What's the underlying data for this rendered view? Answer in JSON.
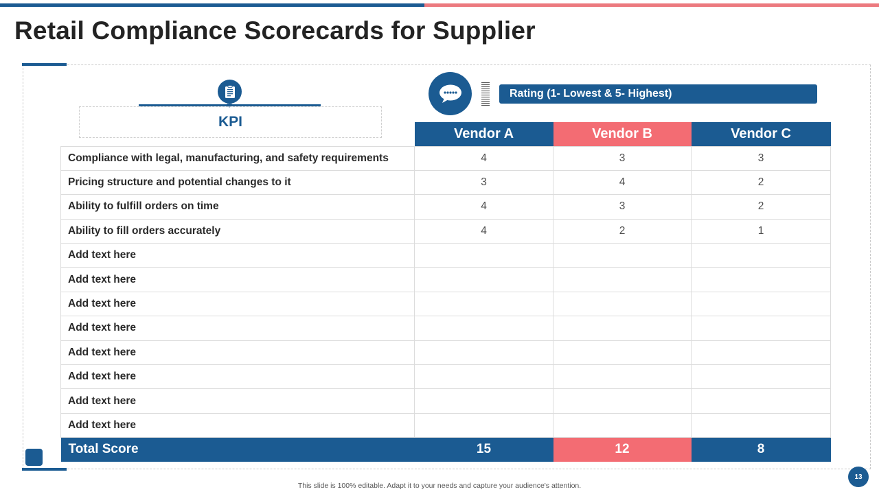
{
  "slide": {
    "title": "Retail Compliance Scorecards for Supplier",
    "page_number": "13",
    "footer_note": "This slide is 100% editable. Adapt it to your needs and capture your audience's attention."
  },
  "colors": {
    "primary": "#1b5b92",
    "accent": "#f36c73"
  },
  "icons": {
    "kpi": "clipboard-icon",
    "rating": "chat-bubble-icon"
  },
  "kpi_header": {
    "label": "KPI"
  },
  "rating_scale": {
    "label": "Rating (1- Lowest & 5- Highest)"
  },
  "table": {
    "vendors": [
      "Vendor A",
      "Vendor B",
      "Vendor C"
    ],
    "rows": [
      {
        "kpi": "Compliance with legal, manufacturing, and safety requirements",
        "scores": [
          "4",
          "3",
          "3"
        ]
      },
      {
        "kpi": "Pricing structure and potential changes to it",
        "scores": [
          "3",
          "4",
          "2"
        ]
      },
      {
        "kpi": "Ability to fulfill orders on time",
        "scores": [
          "4",
          "3",
          "2"
        ]
      },
      {
        "kpi": "Ability to fill orders accurately",
        "scores": [
          "4",
          "2",
          "1"
        ]
      },
      {
        "kpi": "Add text here",
        "scores": [
          "",
          "",
          ""
        ]
      },
      {
        "kpi": "Add text here",
        "scores": [
          "",
          "",
          ""
        ]
      },
      {
        "kpi": "Add text here",
        "scores": [
          "",
          "",
          ""
        ]
      },
      {
        "kpi": "Add text here",
        "scores": [
          "",
          "",
          ""
        ]
      },
      {
        "kpi": "Add text here",
        "scores": [
          "",
          "",
          ""
        ]
      },
      {
        "kpi": "Add text here",
        "scores": [
          "",
          "",
          ""
        ]
      },
      {
        "kpi": "Add text here",
        "scores": [
          "",
          "",
          ""
        ]
      },
      {
        "kpi": "Add text here",
        "scores": [
          "",
          "",
          ""
        ]
      }
    ],
    "total": {
      "label": "Total Score",
      "scores": [
        "15",
        "12",
        "8"
      ]
    }
  }
}
